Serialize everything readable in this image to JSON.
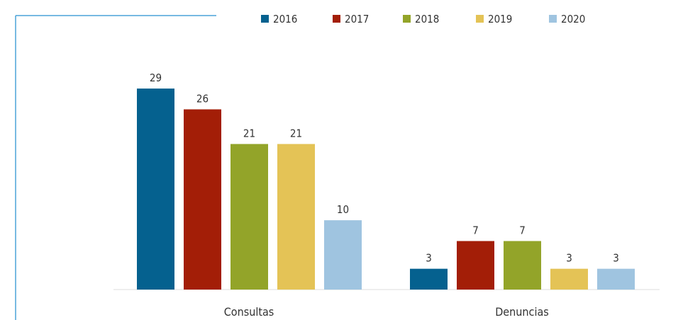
{
  "chart_data": {
    "type": "bar",
    "categories": [
      "Consultas",
      "Denuncias"
    ],
    "series": [
      {
        "name": "2016",
        "color": "#05618f",
        "values": [
          29,
          3
        ]
      },
      {
        "name": "2017",
        "color": "#a31e07",
        "values": [
          26,
          7
        ]
      },
      {
        "name": "2018",
        "color": "#93a429",
        "values": [
          21,
          7
        ]
      },
      {
        "name": "2019",
        "color": "#e4c356",
        "values": [
          21,
          3
        ]
      },
      {
        "name": "2020",
        "color": "#9fc4e0",
        "values": [
          10,
          3
        ]
      }
    ],
    "ylim": [
      0,
      29
    ],
    "grid": false,
    "legend_position": "top",
    "data_labels": true
  }
}
